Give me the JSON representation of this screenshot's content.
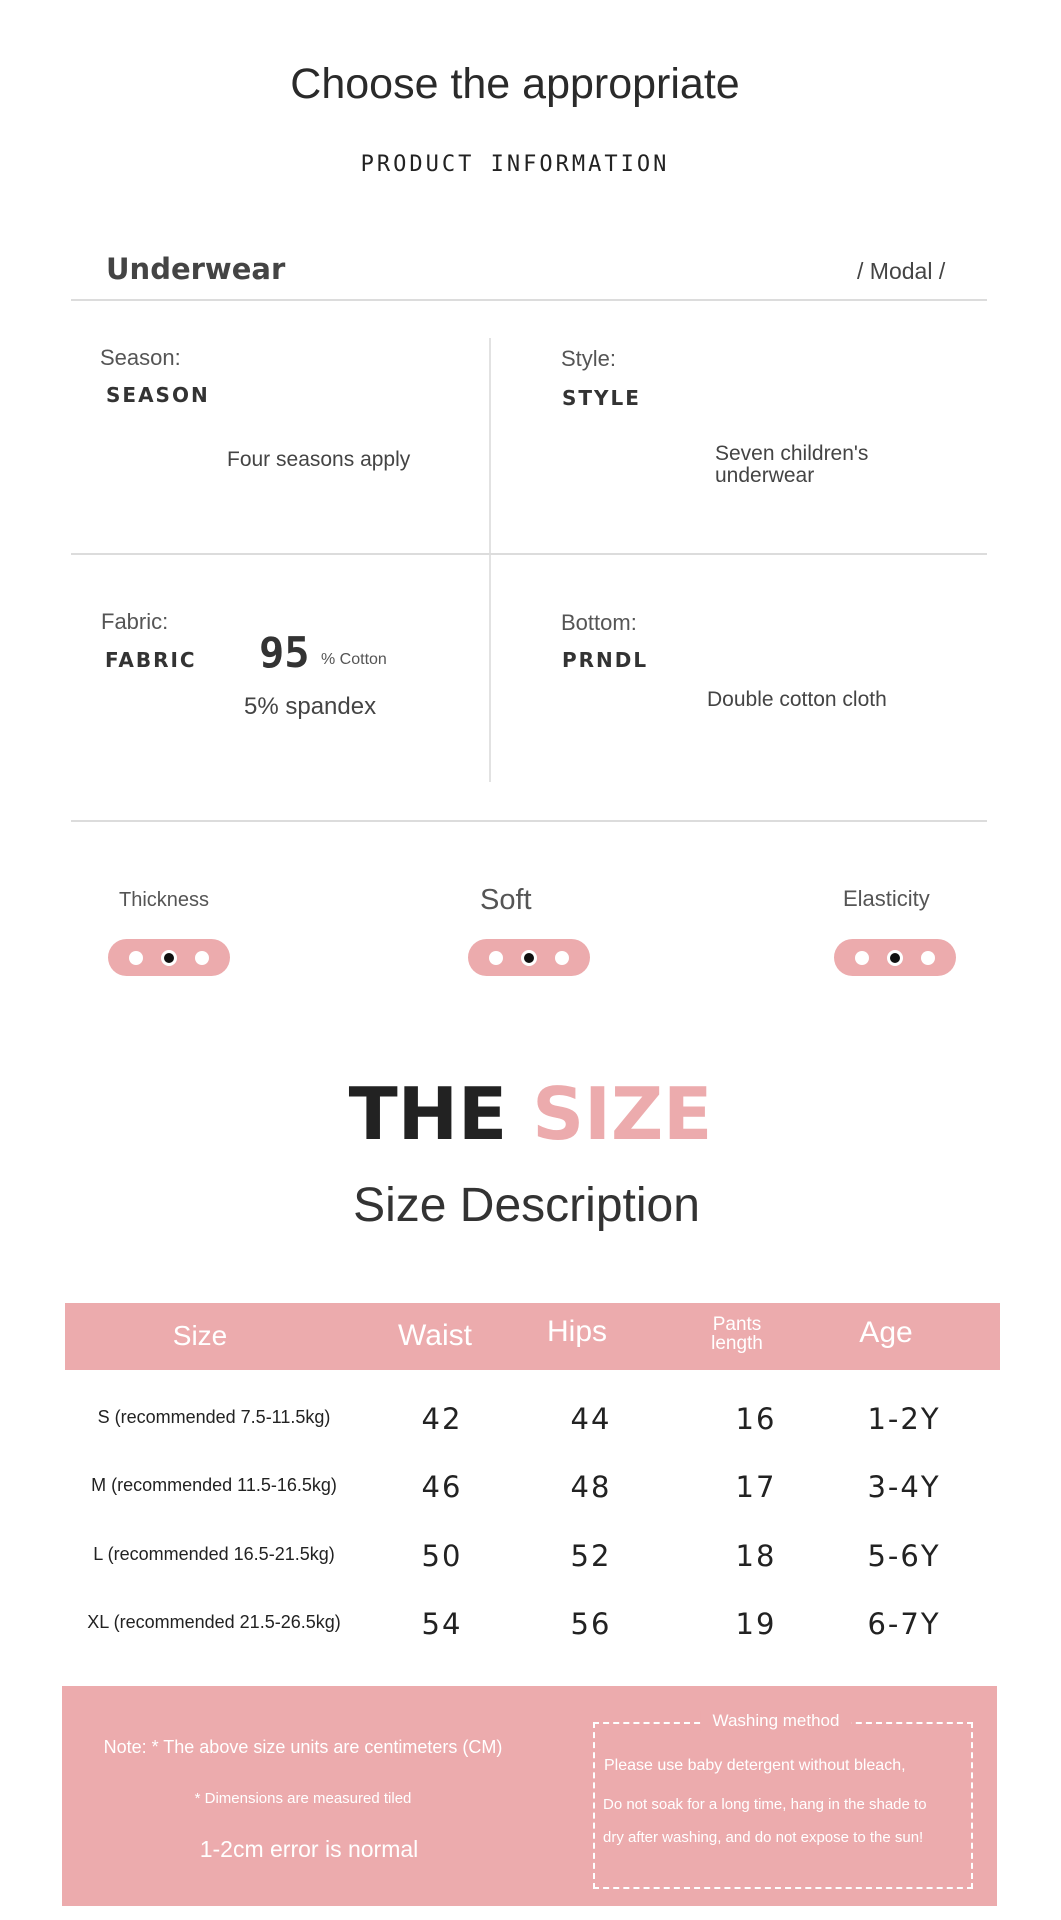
{
  "header": {
    "title": "Choose the appropriate",
    "subtitle": "PRODUCT INFORMATION"
  },
  "product": {
    "name": "Underwear",
    "material": "/ Modal /"
  },
  "attributes": {
    "season": {
      "label": "Season:",
      "code": "SEASON",
      "value": "Four seasons apply"
    },
    "style": {
      "label": "Style:",
      "code": "STYLE",
      "value_line1": "Seven children's",
      "value_line2": "underwear"
    },
    "fabric": {
      "label": "Fabric:",
      "code": "FABRIC",
      "big_number": "95",
      "unit": "% Cotton",
      "value2": "5% spandex"
    },
    "bottom": {
      "label": "Bottom:",
      "code": "PRNDL",
      "value": "Double cotton cloth"
    }
  },
  "ratings": [
    {
      "label": "Thickness",
      "level": 2,
      "of": 3
    },
    {
      "label": "Soft",
      "level": 2,
      "of": 3
    },
    {
      "label": "Elasticity",
      "level": 2,
      "of": 3
    }
  ],
  "size_section": {
    "title_dark": "THE",
    "title_accent": "SIZE",
    "subtitle": "Size Description"
  },
  "table": {
    "headers": [
      "Size",
      "Waist",
      "Hips",
      "Pants length",
      "Age"
    ],
    "rows": [
      [
        "S (recommended 7.5-11.5kg)",
        "42",
        "44",
        "16",
        "1-2Y"
      ],
      [
        "M (recommended 11.5-16.5kg)",
        "46",
        "48",
        "17",
        "3-4Y"
      ],
      [
        "L (recommended 16.5-21.5kg)",
        "50",
        "52",
        "18",
        "5-6Y"
      ],
      [
        "XL (recommended 21.5-26.5kg)",
        "54",
        "56",
        "19",
        "6-7Y"
      ]
    ]
  },
  "notes": {
    "note1": "Note: * The above size units are centimeters (CM)",
    "note2": "* Dimensions are measured tiled",
    "note3": "1-2cm error is normal",
    "washing_title": "Washing method",
    "washing_lines": [
      "Please use baby detergent without bleach,",
      "Do not soak for a long time, hang in the shade to",
      "dry after washing, and do not expose to the sun!"
    ]
  },
  "colors": {
    "accent": "#ecabad",
    "text": "#333333"
  }
}
